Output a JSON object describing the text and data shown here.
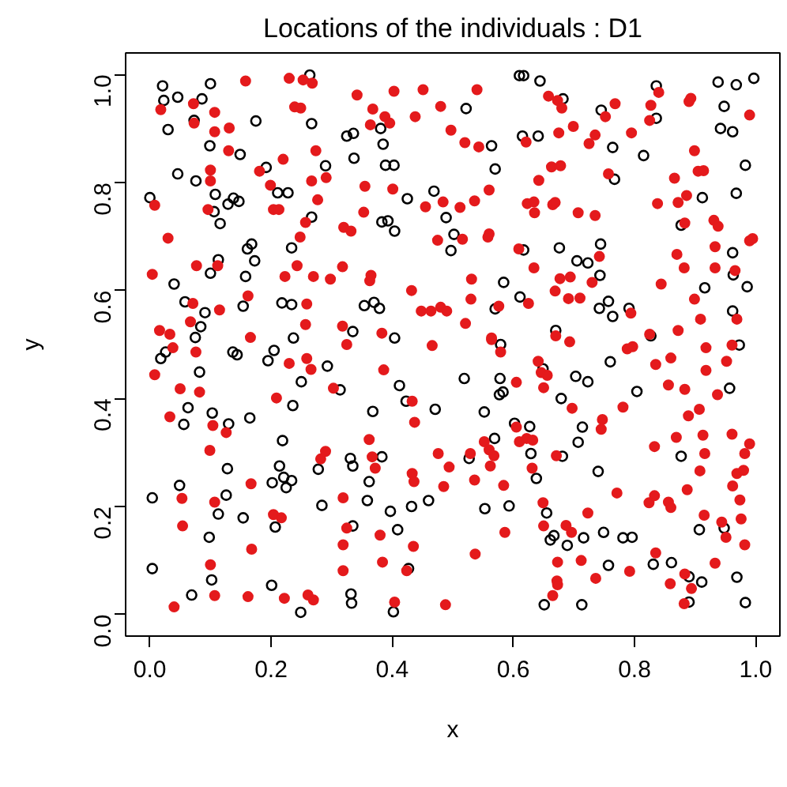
{
  "chart_data": {
    "type": "scatter",
    "title": "Locations of the individuals : D1",
    "xlabel": "x",
    "ylabel": "y",
    "xlim": [
      -0.04,
      1.04
    ],
    "ylim": [
      -0.04,
      1.04
    ],
    "xticks": [
      {
        "value": 0,
        "label": "0.0"
      },
      {
        "value": 0.2,
        "label": "0.2"
      },
      {
        "value": 0.4,
        "label": "0.4"
      },
      {
        "value": 0.6,
        "label": "0.6"
      },
      {
        "value": 0.8,
        "label": "0.8"
      },
      {
        "value": 1,
        "label": "1.0"
      }
    ],
    "yticks": [
      {
        "value": 0,
        "label": "0.0"
      },
      {
        "value": 0.2,
        "label": "0.2"
      },
      {
        "value": 0.4,
        "label": "0.4"
      },
      {
        "value": 0.6,
        "label": "0.6"
      },
      {
        "value": 0.8,
        "label": "0.8"
      },
      {
        "value": 1,
        "label": "1.0"
      }
    ],
    "grid": false,
    "series": [
      {
        "color": "#000000",
        "marker": "circle_open",
        "x": [
          0.021,
          0.023,
          0.046,
          0.086,
          0.1,
          0.264,
          0.03,
          0.073,
          0.175,
          0.267,
          0.099,
          0.149,
          0.325,
          0.336,
          0.381,
          0.385,
          0.337,
          0.389,
          0.403,
          0.192,
          0.29,
          0.046,
          0.076,
          0.108,
          0.138,
          0.129,
          0.147,
          0.211,
          0.228,
          0.0,
          0.106,
          0.116,
          0.267,
          0.425,
          0.469,
          0.489,
          0.383,
          0.393,
          0.404,
          0.502,
          0.497,
          0.168,
          0.161,
          0.234,
          0.113,
          0.173,
          0.1,
          0.158,
          0.04,
          0.058,
          0.091,
          0.084,
          0.075,
          0.154,
          0.218,
          0.234,
          0.354,
          0.37,
          0.379,
          0.335,
          0.404,
          0.237,
          0.61,
          0.617,
          0.644,
          0.682,
          0.522,
          0.745,
          0.836,
          0.836,
          0.938,
          0.968,
          0.997,
          0.948,
          0.942,
          0.962,
          0.615,
          0.641,
          0.564,
          0.764,
          0.815,
          0.57,
          0.767,
          0.983,
          0.912,
          0.968,
          0.877,
          0.617,
          0.676,
          0.744,
          0.705,
          0.723,
          0.743,
          0.962,
          0.963,
          0.986,
          0.916,
          0.584,
          0.611,
          0.57,
          0.742,
          0.757,
          0.764,
          0.791,
          0.962,
          0.67,
          0.827,
          0.026,
          0.018,
          0.137,
          0.144,
          0.205,
          0.195,
          0.293,
          0.082,
          0.25,
          0.314,
          0.412,
          0.423,
          0.471,
          0.063,
          0.056,
          0.103,
          0.13,
          0.165,
          0.236,
          0.368,
          0.219,
          0.128,
          0.214,
          0.221,
          0.234,
          0.225,
          0.202,
          0.278,
          0.331,
          0.335,
          0.383,
          0.362,
          0.049,
          0.004,
          0.126,
          0.113,
          0.154,
          0.284,
          0.359,
          0.397,
          0.432,
          0.46,
          0.207,
          0.335,
          0.409,
          0.098,
          0.004,
          0.102,
          0.201,
          0.427,
          0.069,
          0.332,
          0.333,
          0.249,
          0.402,
          0.579,
          0.519,
          0.578,
          0.577,
          0.583,
          0.649,
          0.703,
          0.723,
          0.76,
          0.804,
          0.679,
          0.957,
          0.973,
          0.552,
          0.602,
          0.627,
          0.569,
          0.714,
          0.707,
          0.527,
          0.629,
          0.681,
          0.638,
          0.74,
          0.877,
          0.553,
          0.593,
          0.655,
          0.667,
          0.661,
          0.689,
          0.716,
          0.749,
          0.781,
          0.796,
          0.907,
          0.948,
          0.757,
          0.831,
          0.861,
          0.89,
          0.911,
          0.969,
          0.89,
          0.983,
          0.651,
          0.713
        ],
        "values": [
          0.979,
          0.952,
          0.958,
          0.955,
          0.983,
          0.999,
          0.898,
          0.915,
          0.914,
          0.909,
          0.868,
          0.852,
          0.886,
          0.891,
          0.9,
          0.871,
          0.845,
          0.832,
          0.832,
          0.828,
          0.831,
          0.816,
          0.803,
          0.778,
          0.771,
          0.76,
          0.765,
          0.781,
          0.781,
          0.772,
          0.746,
          0.724,
          0.736,
          0.77,
          0.784,
          0.735,
          0.727,
          0.729,
          0.71,
          0.704,
          0.674,
          0.686,
          0.677,
          0.679,
          0.657,
          0.655,
          0.632,
          0.626,
          0.612,
          0.579,
          0.559,
          0.533,
          0.513,
          0.571,
          0.577,
          0.574,
          0.572,
          0.578,
          0.567,
          0.524,
          0.512,
          0.512,
          0.998,
          0.998,
          0.988,
          0.955,
          0.937,
          0.934,
          0.979,
          0.919,
          0.986,
          0.981,
          0.993,
          0.941,
          0.9,
          0.894,
          0.886,
          0.886,
          0.868,
          0.865,
          0.85,
          0.825,
          0.806,
          0.832,
          0.772,
          0.78,
          0.721,
          0.675,
          0.679,
          0.686,
          0.655,
          0.651,
          0.628,
          0.67,
          0.629,
          0.607,
          0.605,
          0.615,
          0.588,
          0.566,
          0.567,
          0.58,
          0.552,
          0.567,
          0.562,
          0.526,
          0.516,
          0.486,
          0.474,
          0.486,
          0.481,
          0.489,
          0.47,
          0.46,
          0.449,
          0.431,
          0.416,
          0.424,
          0.395,
          0.38,
          0.383,
          0.352,
          0.373,
          0.353,
          0.364,
          0.387,
          0.376,
          0.322,
          0.27,
          0.275,
          0.254,
          0.248,
          0.235,
          0.244,
          0.269,
          0.289,
          0.275,
          0.292,
          0.246,
          0.239,
          0.216,
          0.221,
          0.186,
          0.179,
          0.202,
          0.211,
          0.191,
          0.2,
          0.211,
          0.162,
          0.164,
          0.157,
          0.143,
          0.085,
          0.064,
          0.054,
          0.085,
          0.036,
          0.038,
          0.021,
          0.004,
          0.005,
          0.5,
          0.437,
          0.437,
          0.407,
          0.412,
          0.455,
          0.441,
          0.431,
          0.468,
          0.413,
          0.4,
          0.419,
          0.499,
          0.375,
          0.354,
          0.348,
          0.326,
          0.347,
          0.319,
          0.289,
          0.298,
          0.293,
          0.252,
          0.265,
          0.293,
          0.196,
          0.201,
          0.188,
          0.146,
          0.138,
          0.128,
          0.142,
          0.152,
          0.142,
          0.143,
          0.157,
          0.16,
          0.091,
          0.093,
          0.096,
          0.07,
          0.06,
          0.069,
          0.023,
          0.022,
          0.018,
          0.018
        ]
      },
      {
        "color": "#e41a1c",
        "marker": "circle",
        "x": [
          0.158,
          0.23,
          0.253,
          0.268,
          0.342,
          0.403,
          0.451,
          0.48,
          0.018,
          0.072,
          0.107,
          0.239,
          0.249,
          0.368,
          0.388,
          0.396,
          0.364,
          0.438,
          0.073,
          0.107,
          0.131,
          0.497,
          0.274,
          0.13,
          0.22,
          0.1,
          0.1,
          0.181,
          0.267,
          0.291,
          0.199,
          0.355,
          0.401,
          0.008,
          0.096,
          0.204,
          0.213,
          0.277,
          0.353,
          0.455,
          0.484,
          0.257,
          0.32,
          0.332,
          0.03,
          0.248,
          0.475,
          0.077,
          0.112,
          0.243,
          0.318,
          0.004,
          0.223,
          0.27,
          0.298,
          0.365,
          0.363,
          0.432,
          0.162,
          0.071,
          0.115,
          0.259,
          0.448,
          0.464,
          0.48,
          0.49,
          0.067,
          0.257,
          0.318,
          0.016,
          0.033,
          0.166,
          0.383,
          0.54,
          0.658,
          0.673,
          0.68,
          0.768,
          0.752,
          0.827,
          0.84,
          0.825,
          0.89,
          0.893,
          0.99,
          0.52,
          0.543,
          0.621,
          0.675,
          0.699,
          0.725,
          0.735,
          0.795,
          0.899,
          0.663,
          0.678,
          0.642,
          0.757,
          0.866,
          0.905,
          0.914,
          0.56,
          0.536,
          0.512,
          0.623,
          0.634,
          0.635,
          0.665,
          0.669,
          0.707,
          0.735,
          0.838,
          0.872,
          0.886,
          0.883,
          0.931,
          0.938,
          0.516,
          0.56,
          0.558,
          0.609,
          0.634,
          0.742,
          0.87,
          0.882,
          0.933,
          0.933,
          0.966,
          0.99,
          0.995,
          0.531,
          0.677,
          0.694,
          0.73,
          0.669,
          0.691,
          0.71,
          0.625,
          0.576,
          0.53,
          0.844,
          0.899,
          0.909,
          0.969,
          0.794,
          0.521,
          0.564,
          0.872,
          0.825,
          0.67,
          0.038,
          0.076,
          0.325,
          0.466,
          0.23,
          0.259,
          0.266,
          0.008,
          0.386,
          0.05,
          0.082,
          0.209,
          0.303,
          0.433,
          0.033,
          0.104,
          0.126,
          0.437,
          0.099,
          0.29,
          0.282,
          0.362,
          0.367,
          0.372,
          0.476,
          0.494,
          0.433,
          0.436,
          0.485,
          0.167,
          0.053,
          0.107,
          0.319,
          0.204,
          0.217,
          0.054,
          0.325,
          0.38,
          0.168,
          0.319,
          0.435,
          0.1,
          0.319,
          0.384,
          0.424,
          0.107,
          0.162,
          0.222,
          0.261,
          0.27,
          0.04,
          0.404,
          0.488,
          0.564,
          0.579,
          0.693,
          0.788,
          0.797,
          0.918,
          0.961,
          0.641,
          0.646,
          0.656,
          0.65,
          0.605,
          0.835,
          0.86,
          0.918,
          0.952,
          0.856,
          0.883,
          0.937,
          0.697,
          0.781,
          0.907,
          0.889,
          0.747,
          0.745,
          0.605,
          0.61,
          0.622,
          0.632,
          0.552,
          0.56,
          0.568,
          0.529,
          0.562,
          0.536,
          0.584,
          0.631,
          0.671,
          0.833,
          0.869,
          0.913,
          0.961,
          0.99,
          0.916,
          0.982,
          0.908,
          0.969,
          0.98,
          0.962,
          0.887,
          0.771,
          0.824,
          0.833,
          0.856,
          0.86,
          0.974,
          0.649,
          0.723,
          0.915,
          0.976,
          0.944,
          0.951,
          0.982,
          0.65,
          0.687,
          0.696,
          0.586,
          0.537,
          0.835,
          0.673,
          0.712,
          0.736,
          0.792,
          0.933,
          0.859,
          0.883,
          0.894,
          0.672,
          0.673,
          0.665,
          0.882
        ],
        "values": [
          0.988,
          0.993,
          0.99,
          0.984,
          0.962,
          0.969,
          0.972,
          0.941,
          0.935,
          0.946,
          0.93,
          0.94,
          0.938,
          0.936,
          0.922,
          0.91,
          0.907,
          0.922,
          0.91,
          0.894,
          0.901,
          0.897,
          0.859,
          0.859,
          0.843,
          0.823,
          0.803,
          0.821,
          0.803,
          0.809,
          0.795,
          0.793,
          0.788,
          0.758,
          0.75,
          0.75,
          0.75,
          0.768,
          0.745,
          0.755,
          0.764,
          0.726,
          0.717,
          0.71,
          0.697,
          0.699,
          0.693,
          0.646,
          0.646,
          0.646,
          0.644,
          0.63,
          0.626,
          0.626,
          0.621,
          0.628,
          0.618,
          0.6,
          0.59,
          0.576,
          0.564,
          0.575,
          0.562,
          0.562,
          0.569,
          0.562,
          0.542,
          0.537,
          0.534,
          0.526,
          0.519,
          0.513,
          0.521,
          0.972,
          0.96,
          0.952,
          0.938,
          0.946,
          0.922,
          0.943,
          0.967,
          0.915,
          0.95,
          0.956,
          0.925,
          0.874,
          0.866,
          0.875,
          0.892,
          0.904,
          0.872,
          0.888,
          0.892,
          0.859,
          0.829,
          0.831,
          0.804,
          0.816,
          0.808,
          0.821,
          0.822,
          0.786,
          0.766,
          0.754,
          0.761,
          0.764,
          0.744,
          0.759,
          0.763,
          0.744,
          0.739,
          0.761,
          0.763,
          0.776,
          0.725,
          0.73,
          0.719,
          0.695,
          0.705,
          0.699,
          0.677,
          0.642,
          0.663,
          0.667,
          0.642,
          0.681,
          0.642,
          0.637,
          0.692,
          0.696,
          0.621,
          0.622,
          0.625,
          0.615,
          0.599,
          0.585,
          0.586,
          0.576,
          0.571,
          0.584,
          0.612,
          0.584,
          0.547,
          0.547,
          0.558,
          0.539,
          0.512,
          0.526,
          0.519,
          0.516,
          0.494,
          0.486,
          0.5,
          0.498,
          0.465,
          0.474,
          0.454,
          0.444,
          0.453,
          0.418,
          0.412,
          0.401,
          0.419,
          0.395,
          0.366,
          0.35,
          0.337,
          0.356,
          0.304,
          0.302,
          0.288,
          0.324,
          0.292,
          0.271,
          0.298,
          0.273,
          0.261,
          0.246,
          0.237,
          0.242,
          0.215,
          0.208,
          0.216,
          0.185,
          0.179,
          0.164,
          0.16,
          0.147,
          0.121,
          0.129,
          0.126,
          0.092,
          0.081,
          0.097,
          0.081,
          0.035,
          0.033,
          0.03,
          0.036,
          0.027,
          0.014,
          0.023,
          0.018,
          0.509,
          0.486,
          0.505,
          0.492,
          0.496,
          0.494,
          0.499,
          0.469,
          0.448,
          0.443,
          0.42,
          0.43,
          0.463,
          0.475,
          0.452,
          0.469,
          0.425,
          0.417,
          0.407,
          0.382,
          0.384,
          0.38,
          0.368,
          0.361,
          0.343,
          0.347,
          0.32,
          0.326,
          0.323,
          0.32,
          0.305,
          0.294,
          0.298,
          0.275,
          0.249,
          0.239,
          0.271,
          0.294,
          0.311,
          0.328,
          0.332,
          0.334,
          0.316,
          0.298,
          0.298,
          0.266,
          0.261,
          0.267,
          0.238,
          0.231,
          0.225,
          0.207,
          0.22,
          0.208,
          0.198,
          0.212,
          0.207,
          0.188,
          0.184,
          0.177,
          0.171,
          0.143,
          0.129,
          0.164,
          0.165,
          0.152,
          0.152,
          0.112,
          0.114,
          0.097,
          0.1,
          0.067,
          0.08,
          0.095,
          0.057,
          0.075,
          0.048,
          0.062,
          0.055,
          0.035,
          0.02
        ]
      }
    ]
  }
}
